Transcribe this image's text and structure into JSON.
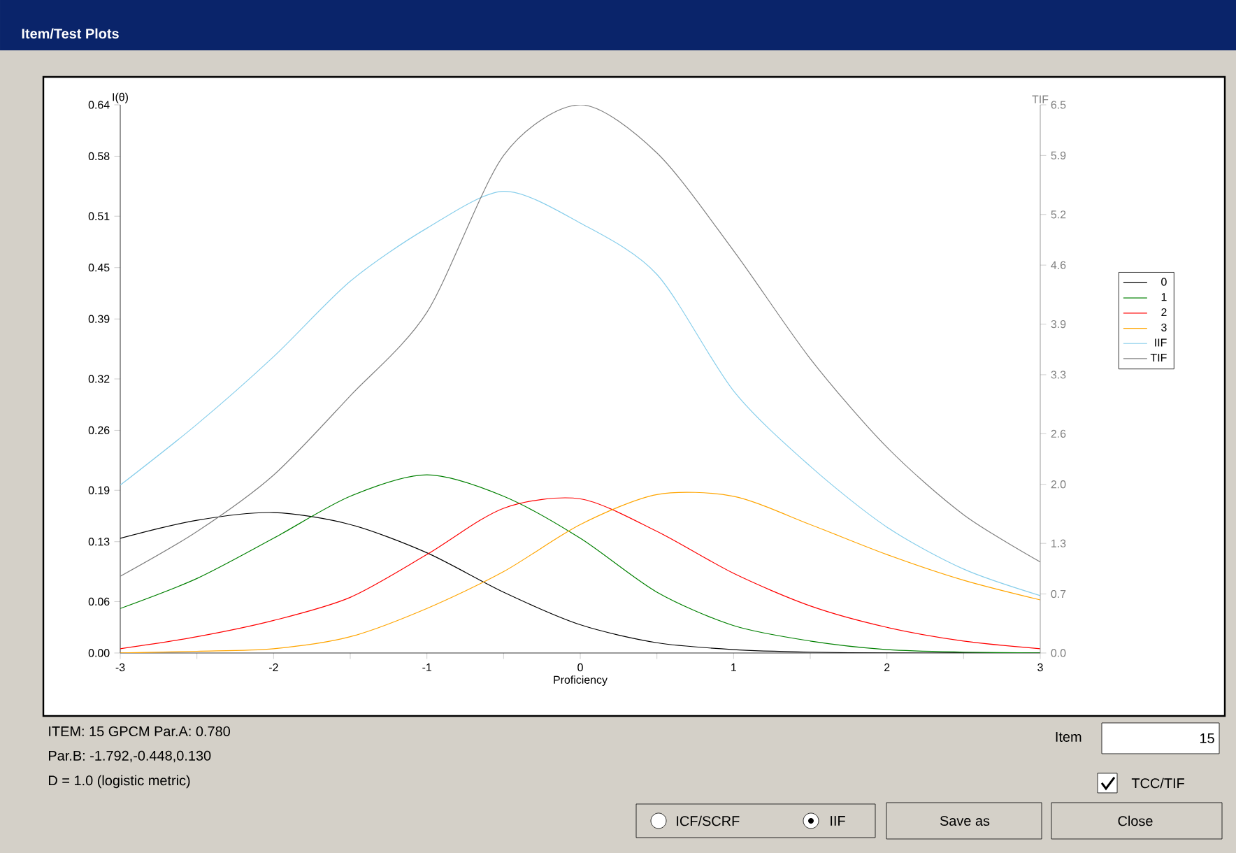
{
  "chart_data": {
    "type": "line",
    "title": "Item/Test Plots",
    "xlabel": "Proficiency",
    "ylabel": "I(θ)",
    "y2label": "TIF",
    "x": [
      -3,
      -2.5,
      -2,
      -1.5,
      -1,
      -0.5,
      0,
      0.5,
      1,
      1.5,
      2,
      2.5,
      3
    ],
    "series": [
      {
        "name": "0",
        "color": "#000000",
        "values": [
          0.134,
          0.155,
          0.164,
          0.15,
          0.117,
          0.071,
          0.033,
          0.012,
          0.004,
          0.001,
          0,
          0,
          0
        ]
      },
      {
        "name": "1",
        "color": "#008000",
        "values": [
          0.052,
          0.087,
          0.134,
          0.183,
          0.208,
          0.183,
          0.134,
          0.071,
          0.032,
          0.014,
          0.004,
          0.001,
          0
        ]
      },
      {
        "name": "2",
        "color": "#ff0000",
        "values": [
          0.005,
          0.019,
          0.038,
          0.065,
          0.115,
          0.169,
          0.18,
          0.142,
          0.093,
          0.055,
          0.03,
          0.014,
          0.005
        ]
      },
      {
        "name": "3",
        "color": "#ffa500",
        "values": [
          0,
          0.002,
          0.005,
          0.019,
          0.052,
          0.095,
          0.15,
          0.185,
          0.183,
          0.15,
          0.115,
          0.085,
          0.062
        ]
      },
      {
        "name": "IIF",
        "color": "#87ceeb",
        "values": [
          0.196,
          0.267,
          0.346,
          0.434,
          0.496,
          0.539,
          0.502,
          0.442,
          0.306,
          0.218,
          0.147,
          0.098,
          0.067
        ]
      },
      {
        "name": "TIF",
        "color": "#808080",
        "axis": "y2",
        "values": [
          0.91,
          1.44,
          2.11,
          3.05,
          4.04,
          5.9,
          6.5,
          5.93,
          4.77,
          3.49,
          2.44,
          1.64,
          1.08
        ]
      }
    ],
    "xlim": [
      -3,
      3
    ],
    "ylim": [
      0,
      0.64
    ],
    "y2lim": [
      0,
      6.5
    ],
    "xticks": [
      -3,
      {
        "value": -2.5,
        "label": null
      },
      -2,
      {
        "value": -1.5,
        "label": null
      },
      -1,
      {
        "value": -0.5,
        "label": null
      },
      0,
      {
        "value": 0.5,
        "label": null
      },
      1,
      {
        "value": 1.5,
        "label": null
      },
      2,
      {
        "value": 2.5,
        "label": null
      },
      3
    ],
    "yticks": [
      {
        "value": 0,
        "label": "0.00"
      },
      {
        "value": 0.06,
        "label": "0.06"
      },
      {
        "value": 0.13,
        "label": "0.13"
      },
      {
        "value": 0.19,
        "label": "0.19"
      },
      {
        "value": 0.26,
        "label": "0.26"
      },
      {
        "value": 0.32,
        "label": "0.32"
      },
      {
        "value": 0.39,
        "label": "0.39"
      },
      {
        "value": 0.45,
        "label": "0.45"
      },
      {
        "value": 0.51,
        "label": "0.51"
      },
      {
        "value": 0.58,
        "label": "0.58"
      },
      {
        "value": 0.64,
        "label": "0.64"
      }
    ],
    "y2ticks": [
      {
        "value": 0,
        "label": "0.0"
      },
      {
        "value": 0.7,
        "label": "0.7"
      },
      {
        "value": 1.3,
        "label": "1.3"
      },
      {
        "value": 2.0,
        "label": "2.0"
      },
      {
        "value": 2.6,
        "label": "2.6"
      },
      {
        "value": 3.3,
        "label": "3.3"
      },
      {
        "value": 3.9,
        "label": "3.9"
      },
      {
        "value": 4.6,
        "label": "4.6"
      },
      {
        "value": 5.2,
        "label": "5.2"
      },
      {
        "value": 5.9,
        "label": "5.9"
      },
      {
        "value": 6.5,
        "label": "6.5"
      }
    ],
    "legend": "right",
    "annotations": [
      "ITEM: 15    GPCM    Par.A: 0.780",
      "Par.B: -1.792,-0.448,0.130",
      "D = 1.0 (logistic metric)",
      "Item",
      "15",
      "TCC/TIF",
      "ICF/SCRF",
      "IIF",
      "Save as",
      "Close"
    ]
  }
}
